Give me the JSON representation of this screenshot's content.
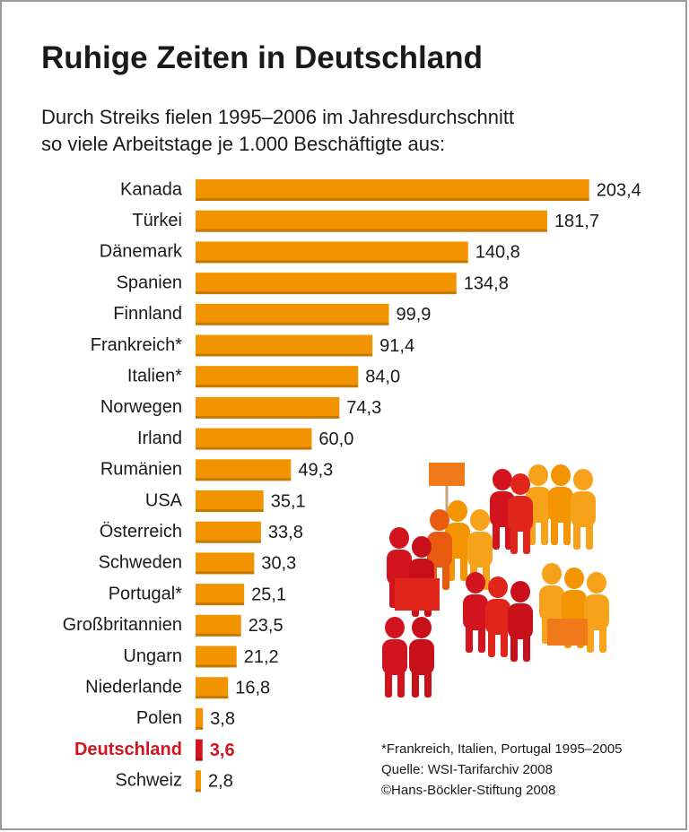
{
  "chart_data": {
    "type": "hbar",
    "title": "Ruhige Zeiten in Deutschland",
    "subtitle": [
      "Durch Streiks fielen 1995–2006 im Jahresdurchschnitt",
      "so viele Arbeitstage je 1.000 Beschäftigte aus:"
    ],
    "categories": [
      "Kanada",
      "Türkei",
      "Dänemark",
      "Spanien",
      "Finnland",
      "Frankreich*",
      "Italien*",
      "Norwegen",
      "Irland",
      "Rumänien",
      "USA",
      "Österreich",
      "Schweden",
      "Portugal*",
      "Großbritannien",
      "Ungarn",
      "Niederlande",
      "Polen",
      "Deutschland",
      "Schweiz"
    ],
    "values": [
      203.4,
      181.7,
      140.8,
      134.8,
      99.9,
      91.4,
      84.0,
      74.3,
      60.0,
      49.3,
      35.1,
      33.8,
      30.3,
      25.1,
      23.5,
      21.2,
      16.8,
      3.8,
      3.6,
      2.8
    ],
    "value_labels": [
      "203,4",
      "181,7",
      "140,8",
      "134,8",
      "99,9",
      "91,4",
      "84,0",
      "74,3",
      "60,0",
      "49,3",
      "35,1",
      "33,8",
      "30,3",
      "25,1",
      "23,5",
      "21,2",
      "16,8",
      "3,8",
      "3,6",
      "2,8"
    ],
    "colors": [
      "#f29400",
      "#f29400",
      "#f29400",
      "#f29400",
      "#f29400",
      "#f29400",
      "#f29400",
      "#f29400",
      "#f29400",
      "#f29400",
      "#f29400",
      "#f29400",
      "#f29400",
      "#f29400",
      "#f29400",
      "#f29400",
      "#f29400",
      "#f29400",
      "#d2141e",
      "#f29400"
    ],
    "label_colors": [
      "#1a1a1a",
      "#1a1a1a",
      "#1a1a1a",
      "#1a1a1a",
      "#1a1a1a",
      "#1a1a1a",
      "#1a1a1a",
      "#1a1a1a",
      "#1a1a1a",
      "#1a1a1a",
      "#1a1a1a",
      "#1a1a1a",
      "#1a1a1a",
      "#1a1a1a",
      "#1a1a1a",
      "#1a1a1a",
      "#1a1a1a",
      "#1a1a1a",
      "#d2141e",
      "#1a1a1a"
    ],
    "xlim": [
      0,
      210
    ],
    "notes": [
      "*Frankreich, Italien, Portugal 1995–2005",
      "Quelle: WSI-Tarifarchiv 2008",
      "©Hans-Böckler-Stiftung 2008"
    ]
  }
}
